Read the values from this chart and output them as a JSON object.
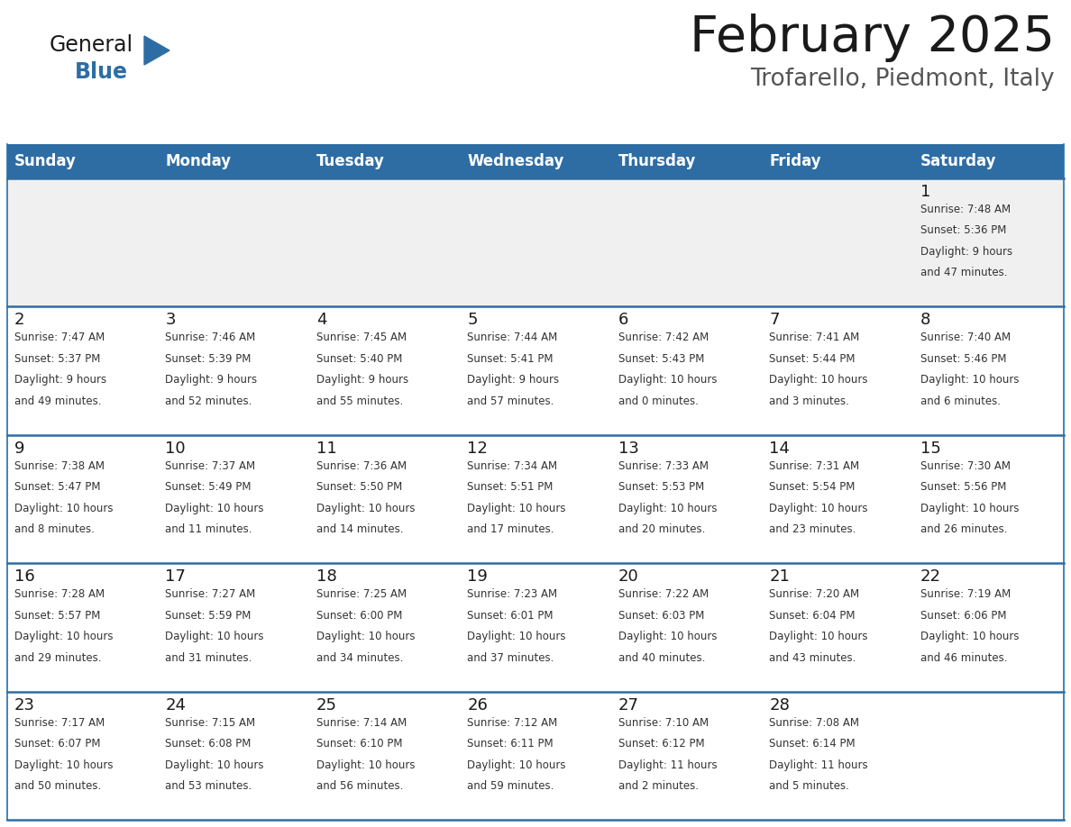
{
  "title": "February 2025",
  "subtitle": "Trofarello, Piedmont, Italy",
  "header_bg": "#2E6DA4",
  "header_text_color": "#FFFFFF",
  "cell_bg_white": "#FFFFFF",
  "cell_bg_gray": "#F0F0F0",
  "border_color": "#2E6DA4",
  "text_color": "#333333",
  "day_num_color": "#1a1a1a",
  "logo_general_color": "#1a1a1a",
  "logo_blue_color": "#2E6DA4",
  "days_of_week": [
    "Sunday",
    "Monday",
    "Tuesday",
    "Wednesday",
    "Thursday",
    "Friday",
    "Saturday"
  ],
  "calendar_data": [
    [
      null,
      null,
      null,
      null,
      null,
      null,
      1
    ],
    [
      2,
      3,
      4,
      5,
      6,
      7,
      8
    ],
    [
      9,
      10,
      11,
      12,
      13,
      14,
      15
    ],
    [
      16,
      17,
      18,
      19,
      20,
      21,
      22
    ],
    [
      23,
      24,
      25,
      26,
      27,
      28,
      null
    ]
  ],
  "cell_info": {
    "1": {
      "sunrise": "7:48 AM",
      "sunset": "5:36 PM",
      "daylight": "9 hours and 47 minutes."
    },
    "2": {
      "sunrise": "7:47 AM",
      "sunset": "5:37 PM",
      "daylight": "9 hours and 49 minutes."
    },
    "3": {
      "sunrise": "7:46 AM",
      "sunset": "5:39 PM",
      "daylight": "9 hours and 52 minutes."
    },
    "4": {
      "sunrise": "7:45 AM",
      "sunset": "5:40 PM",
      "daylight": "9 hours and 55 minutes."
    },
    "5": {
      "sunrise": "7:44 AM",
      "sunset": "5:41 PM",
      "daylight": "9 hours and 57 minutes."
    },
    "6": {
      "sunrise": "7:42 AM",
      "sunset": "5:43 PM",
      "daylight": "10 hours and 0 minutes."
    },
    "7": {
      "sunrise": "7:41 AM",
      "sunset": "5:44 PM",
      "daylight": "10 hours and 3 minutes."
    },
    "8": {
      "sunrise": "7:40 AM",
      "sunset": "5:46 PM",
      "daylight": "10 hours and 6 minutes."
    },
    "9": {
      "sunrise": "7:38 AM",
      "sunset": "5:47 PM",
      "daylight": "10 hours and 8 minutes."
    },
    "10": {
      "sunrise": "7:37 AM",
      "sunset": "5:49 PM",
      "daylight": "10 hours and 11 minutes."
    },
    "11": {
      "sunrise": "7:36 AM",
      "sunset": "5:50 PM",
      "daylight": "10 hours and 14 minutes."
    },
    "12": {
      "sunrise": "7:34 AM",
      "sunset": "5:51 PM",
      "daylight": "10 hours and 17 minutes."
    },
    "13": {
      "sunrise": "7:33 AM",
      "sunset": "5:53 PM",
      "daylight": "10 hours and 20 minutes."
    },
    "14": {
      "sunrise": "7:31 AM",
      "sunset": "5:54 PM",
      "daylight": "10 hours and 23 minutes."
    },
    "15": {
      "sunrise": "7:30 AM",
      "sunset": "5:56 PM",
      "daylight": "10 hours and 26 minutes."
    },
    "16": {
      "sunrise": "7:28 AM",
      "sunset": "5:57 PM",
      "daylight": "10 hours and 29 minutes."
    },
    "17": {
      "sunrise": "7:27 AM",
      "sunset": "5:59 PM",
      "daylight": "10 hours and 31 minutes."
    },
    "18": {
      "sunrise": "7:25 AM",
      "sunset": "6:00 PM",
      "daylight": "10 hours and 34 minutes."
    },
    "19": {
      "sunrise": "7:23 AM",
      "sunset": "6:01 PM",
      "daylight": "10 hours and 37 minutes."
    },
    "20": {
      "sunrise": "7:22 AM",
      "sunset": "6:03 PM",
      "daylight": "10 hours and 40 minutes."
    },
    "21": {
      "sunrise": "7:20 AM",
      "sunset": "6:04 PM",
      "daylight": "10 hours and 43 minutes."
    },
    "22": {
      "sunrise": "7:19 AM",
      "sunset": "6:06 PM",
      "daylight": "10 hours and 46 minutes."
    },
    "23": {
      "sunrise": "7:17 AM",
      "sunset": "6:07 PM",
      "daylight": "10 hours and 50 minutes."
    },
    "24": {
      "sunrise": "7:15 AM",
      "sunset": "6:08 PM",
      "daylight": "10 hours and 53 minutes."
    },
    "25": {
      "sunrise": "7:14 AM",
      "sunset": "6:10 PM",
      "daylight": "10 hours and 56 minutes."
    },
    "26": {
      "sunrise": "7:12 AM",
      "sunset": "6:11 PM",
      "daylight": "10 hours and 59 minutes."
    },
    "27": {
      "sunrise": "7:10 AM",
      "sunset": "6:12 PM",
      "daylight": "11 hours and 2 minutes."
    },
    "28": {
      "sunrise": "7:08 AM",
      "sunset": "6:14 PM",
      "daylight": "11 hours and 5 minutes."
    }
  }
}
